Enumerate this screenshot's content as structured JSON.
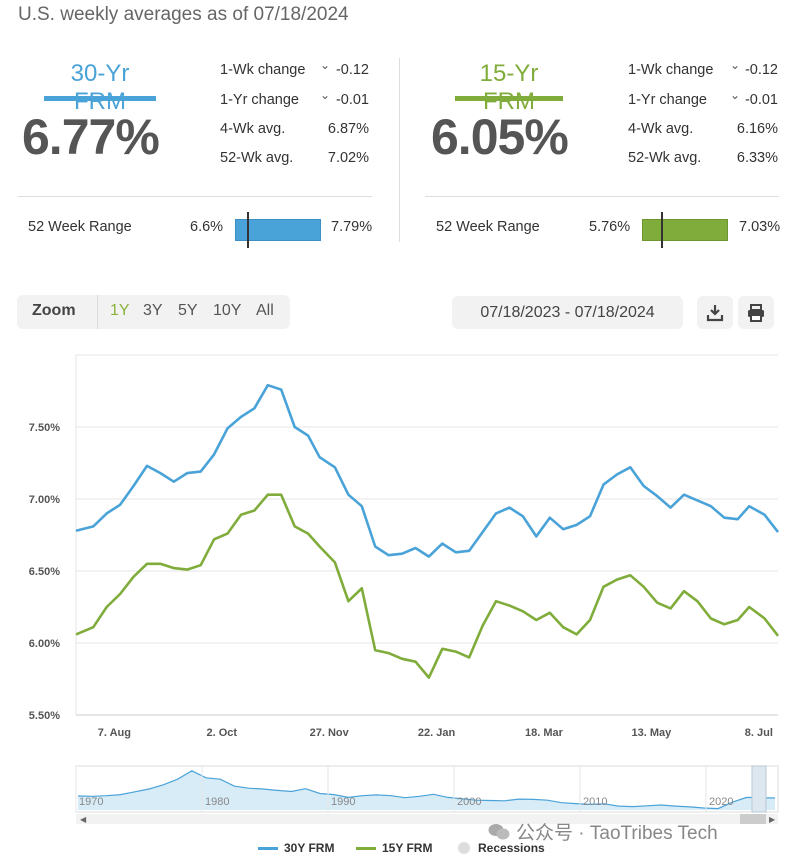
{
  "header": {
    "title": "U.S. weekly averages as of 07/18/2024"
  },
  "frm30": {
    "name": "30-Yr FRM",
    "rate": "6.77%",
    "color": "#4aa3d8",
    "stats": [
      {
        "label": "1-Wk change",
        "value": "-0.12",
        "chevron": true
      },
      {
        "label": "1-Yr change",
        "value": "-0.01",
        "chevron": true
      },
      {
        "label": "4-Wk avg.",
        "value": "6.87%",
        "chevron": false
      },
      {
        "label": "52-Wk avg.",
        "value": "7.02%",
        "chevron": false
      }
    ],
    "range": {
      "label": "52 Week Range",
      "low": "6.6%",
      "high": "7.79%",
      "current_fraction": 0.143
    }
  },
  "frm15": {
    "name": "15-Yr FRM",
    "rate": "6.05%",
    "color": "#7fac3a",
    "stats": [
      {
        "label": "1-Wk change",
        "value": "-0.12",
        "chevron": true
      },
      {
        "label": "1-Yr change",
        "value": "-0.01",
        "chevron": true
      },
      {
        "label": "4-Wk avg.",
        "value": "6.16%",
        "chevron": false
      },
      {
        "label": "52-Wk avg.",
        "value": "6.33%",
        "chevron": false
      }
    ],
    "range": {
      "label": "52 Week Range",
      "low": "5.76%",
      "high": "7.03%",
      "current_fraction": 0.228
    }
  },
  "controls": {
    "zoom_label": "Zoom",
    "zoom_options": [
      "1Y",
      "3Y",
      "5Y",
      "10Y",
      "All"
    ],
    "zoom_selected": "1Y",
    "date_range": "07/18/2023 - 07/18/2024",
    "download_icon": "download-icon",
    "print_icon": "print-icon"
  },
  "chart_data": {
    "type": "line",
    "ylim": [
      5.5,
      8.0
    ],
    "y_ticks": [
      "7.50%",
      "7.00%",
      "6.50%",
      "6.00%",
      "5.50%"
    ],
    "x_ticks": [
      "7. Aug",
      "2. Oct",
      "27. Nov",
      "22. Jan",
      "18. Mar",
      "13. May",
      "8. Jul"
    ],
    "grid": true,
    "x": [
      "2023-07-18",
      "2023-07-27",
      "2023-08-03",
      "2023-08-10",
      "2023-08-17",
      "2023-08-24",
      "2023-08-31",
      "2023-09-07",
      "2023-09-14",
      "2023-09-21",
      "2023-09-28",
      "2023-10-05",
      "2023-10-12",
      "2023-10-19",
      "2023-10-26",
      "2023-11-02",
      "2023-11-09",
      "2023-11-16",
      "2023-11-22",
      "2023-11-30",
      "2023-12-07",
      "2023-12-14",
      "2023-12-21",
      "2023-12-28",
      "2024-01-04",
      "2024-01-11",
      "2024-01-18",
      "2024-01-25",
      "2024-02-01",
      "2024-02-08",
      "2024-02-15",
      "2024-02-22",
      "2024-02-29",
      "2024-03-07",
      "2024-03-14",
      "2024-03-21",
      "2024-03-28",
      "2024-04-04",
      "2024-04-11",
      "2024-04-18",
      "2024-04-25",
      "2024-05-02",
      "2024-05-09",
      "2024-05-16",
      "2024-05-23",
      "2024-05-30",
      "2024-06-06",
      "2024-06-13",
      "2024-06-20",
      "2024-06-27",
      "2024-07-03",
      "2024-07-11",
      "2024-07-18"
    ],
    "series": [
      {
        "name": "30Y FRM",
        "color": "#4aa3d8",
        "values": [
          6.78,
          6.81,
          6.9,
          6.96,
          7.09,
          7.23,
          7.18,
          7.12,
          7.18,
          7.19,
          7.31,
          7.49,
          7.57,
          7.63,
          7.79,
          7.76,
          7.5,
          7.44,
          7.29,
          7.22,
          7.03,
          6.95,
          6.67,
          6.61,
          6.62,
          6.66,
          6.6,
          6.69,
          6.63,
          6.64,
          6.77,
          6.9,
          6.94,
          6.88,
          6.74,
          6.87,
          6.79,
          6.82,
          6.88,
          7.1,
          7.17,
          7.22,
          7.09,
          7.02,
          6.94,
          7.03,
          6.99,
          6.95,
          6.87,
          6.86,
          6.95,
          6.89,
          6.77
        ]
      },
      {
        "name": "15Y FRM",
        "color": "#7fac3a",
        "values": [
          6.06,
          6.11,
          6.25,
          6.34,
          6.46,
          6.55,
          6.55,
          6.52,
          6.51,
          6.54,
          6.72,
          6.76,
          6.89,
          6.92,
          7.03,
          7.03,
          6.81,
          6.76,
          6.67,
          6.56,
          6.29,
          6.38,
          5.95,
          5.93,
          5.89,
          5.87,
          5.76,
          5.96,
          5.94,
          5.9,
          6.12,
          6.29,
          6.26,
          6.22,
          6.16,
          6.21,
          6.11,
          6.06,
          6.16,
          6.39,
          6.44,
          6.47,
          6.39,
          6.28,
          6.24,
          6.36,
          6.29,
          6.17,
          6.13,
          6.16,
          6.25,
          6.17,
          6.05
        ]
      }
    ],
    "legend": [
      "30Y FRM",
      "15Y FRM",
      "Recessions"
    ],
    "legend_position": "bottom"
  },
  "navigator": {
    "x_ticks": [
      "1970",
      "1980",
      "1990",
      "2000",
      "2010",
      "2020"
    ]
  },
  "watermark": {
    "text": "公众号 · TaoTribes Tech"
  }
}
